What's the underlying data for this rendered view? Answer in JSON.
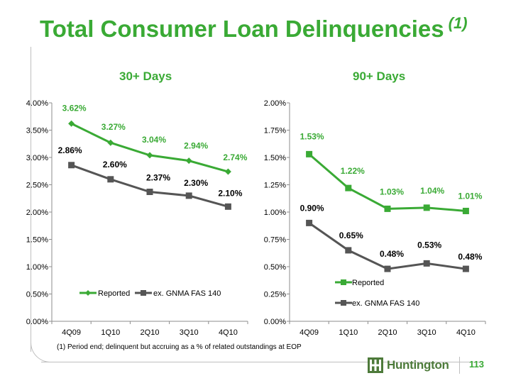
{
  "title": "Total Consumer Loan Delinquencies",
  "title_superscript": "(1)",
  "footnote": "(1) Period end; delinquent but accruing as a % of related outstandings at EOP",
  "logo_text": "Huntington",
  "page_number": "113",
  "colors": {
    "reported": "#3aaa35",
    "exgnma": "#555555",
    "title": "#3aaa35"
  },
  "chart_data": [
    {
      "type": "line",
      "title": "30+ Days",
      "categories": [
        "4Q09",
        "1Q10",
        "2Q10",
        "3Q10",
        "4Q10"
      ],
      "ylim": [
        0,
        4.0
      ],
      "yticks": [
        "0.00%",
        "0.50%",
        "1.00%",
        "1.50%",
        "2.00%",
        "2.50%",
        "3.00%",
        "3.50%",
        "4.00%"
      ],
      "legend": "bottom-inside",
      "series": [
        {
          "name": "Reported",
          "values": [
            3.62,
            3.27,
            3.04,
            2.94,
            2.74
          ],
          "labels": [
            "3.62%",
            "3.27%",
            "3.04%",
            "2.94%",
            "2.74%"
          ],
          "marker": "diamond"
        },
        {
          "name": "ex. GNMA FAS 140",
          "values": [
            2.86,
            2.6,
            2.37,
            2.3,
            2.1
          ],
          "labels": [
            "2.86%",
            "2.60%",
            "2.37%",
            "2.30%",
            "2.10%"
          ],
          "marker": "square"
        }
      ]
    },
    {
      "type": "line",
      "title": "90+ Days",
      "categories": [
        "4Q09",
        "1Q10",
        "2Q10",
        "3Q10",
        "4Q10"
      ],
      "ylim": [
        0,
        2.0
      ],
      "yticks": [
        "0.00%",
        "0.25%",
        "0.50%",
        "0.75%",
        "1.00%",
        "1.25%",
        "1.50%",
        "1.75%",
        "2.00%"
      ],
      "legend": "bottom-inside-stacked",
      "series": [
        {
          "name": "Reported",
          "values": [
            1.53,
            1.22,
            1.03,
            1.04,
            1.01
          ],
          "labels": [
            "1.53%",
            "1.22%",
            "1.03%",
            "1.04%",
            "1.01%"
          ],
          "marker": "square"
        },
        {
          "name": "ex. GNMA FAS 140",
          "values": [
            0.9,
            0.65,
            0.48,
            0.53,
            0.48
          ],
          "labels": [
            "0.90%",
            "0.65%",
            "0.48%",
            "0.53%",
            "0.48%"
          ],
          "marker": "square"
        }
      ]
    }
  ]
}
